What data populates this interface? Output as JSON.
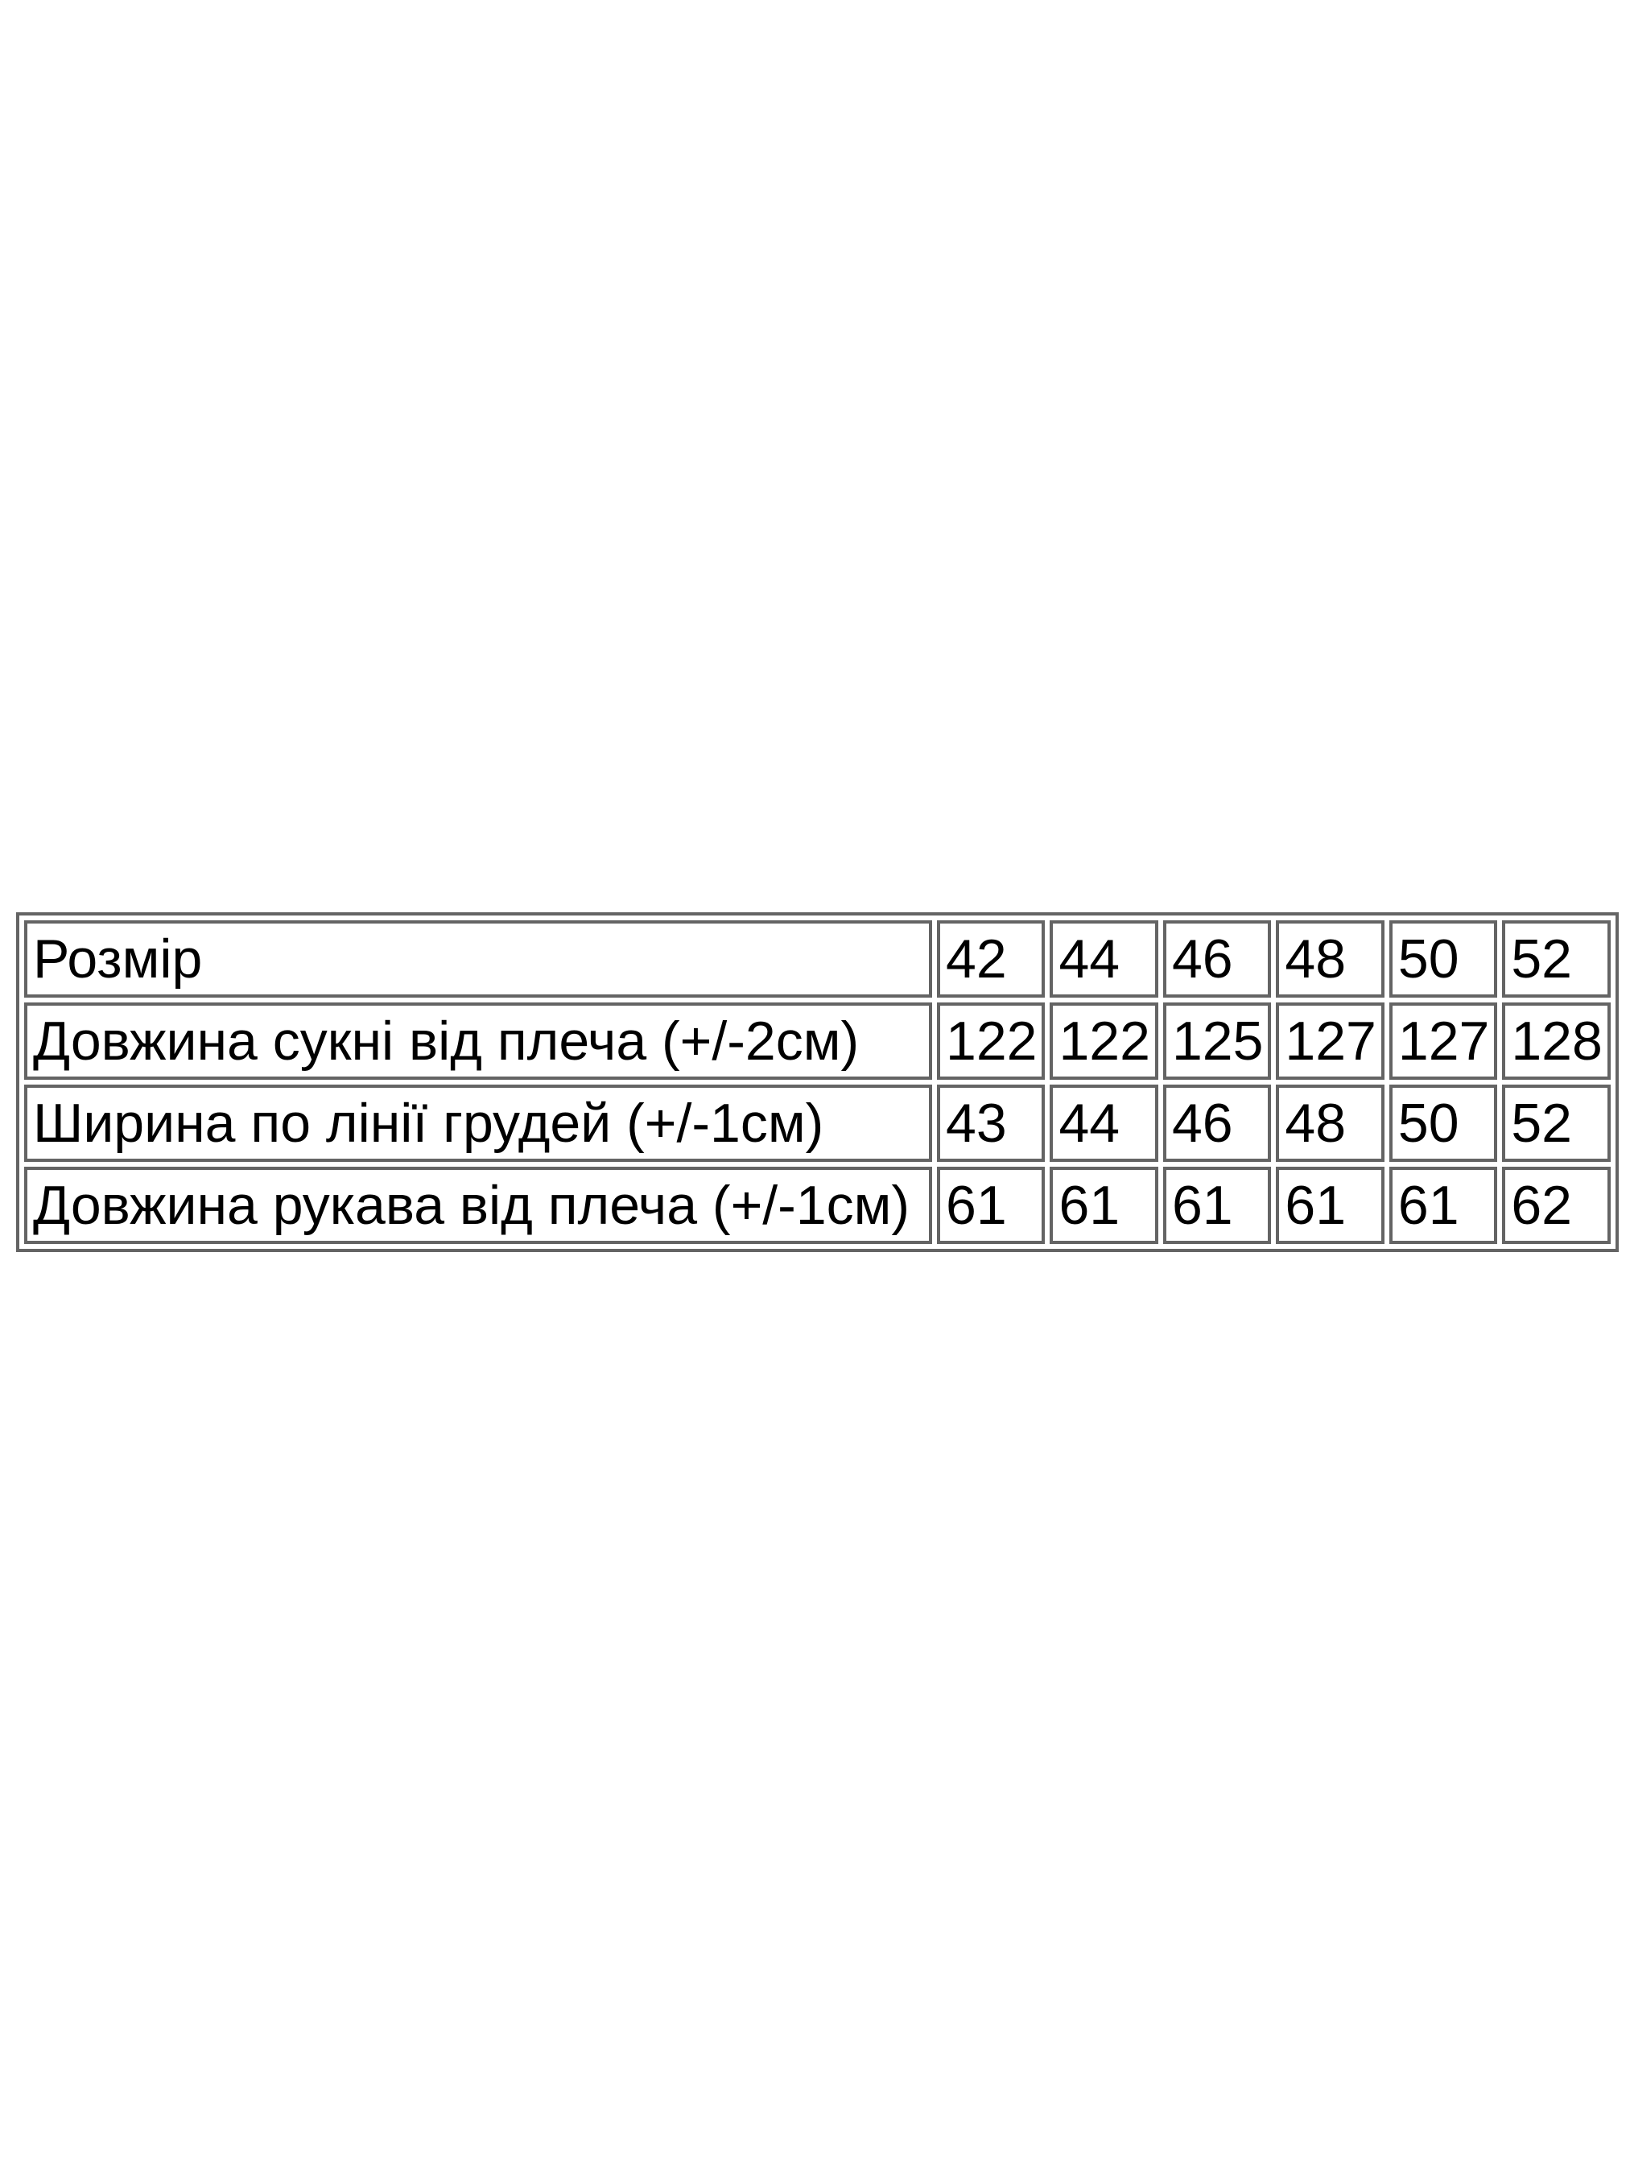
{
  "page": {
    "background_color": "#ffffff",
    "table_border_color": "#646464",
    "table_text_color": "#000000"
  },
  "chart_data": {
    "type": "table",
    "title": "",
    "rows": [
      {
        "label": "Розмір",
        "values": [
          "42",
          "44",
          "46",
          "48",
          "50",
          "52"
        ]
      },
      {
        "label": "Довжина сукні від плеча (+/-2см)",
        "values": [
          "122",
          "122",
          "125",
          "127",
          "127",
          "128"
        ]
      },
      {
        "label": "Ширина по лінії грудей (+/-1см)",
        "values": [
          "43",
          "44",
          "46",
          "48",
          "50",
          "52"
        ]
      },
      {
        "label": "Довжина рукава від плеча (+/-1см)",
        "values": [
          "61",
          "61",
          "61",
          "61",
          "61",
          "62"
        ]
      }
    ]
  }
}
